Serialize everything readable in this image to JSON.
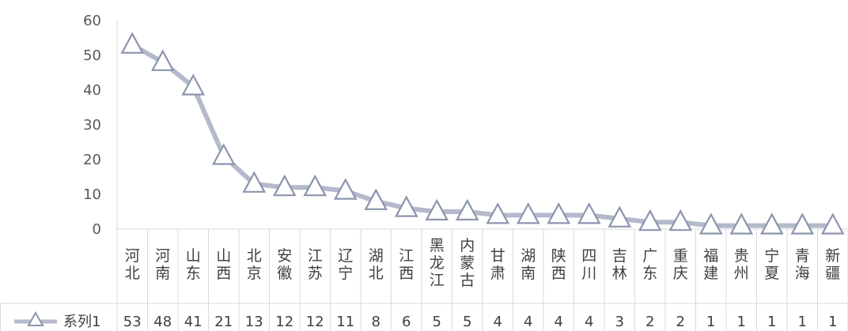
{
  "chart_data": {
    "type": "line",
    "categories": [
      "河北",
      "河南",
      "山东",
      "山西",
      "北京",
      "安徽",
      "江苏",
      "辽宁",
      "湖北",
      "江西",
      "黑龙江",
      "内蒙古",
      "甘肃",
      "湖南",
      "陕西",
      "四川",
      "吉林",
      "广东",
      "重庆",
      "福建",
      "贵州",
      "宁夏",
      "青海",
      "新疆"
    ],
    "series": [
      {
        "name": "系列1",
        "values": [
          53,
          48,
          41,
          21,
          13,
          12,
          12,
          11,
          8,
          6,
          5,
          5,
          4,
          4,
          4,
          4,
          3,
          2,
          2,
          1,
          1,
          1,
          1,
          1
        ]
      }
    ],
    "y_ticks": [
      "0",
      "10",
      "20",
      "30",
      "40",
      "50",
      "60"
    ],
    "ylim": [
      0,
      60
    ],
    "title": "",
    "xlabel": "",
    "ylabel": "",
    "marker": "triangle",
    "line_color": "#b4bacb",
    "marker_fill": "#ffffff",
    "marker_stroke": "#8c95ad",
    "grid": false,
    "data_table": true,
    "legend_position": "data-table"
  }
}
